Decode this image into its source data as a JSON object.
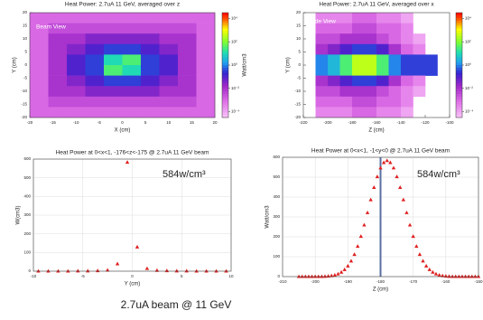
{
  "caption": "2.7uA beam @ 11 GeV",
  "chart_data": [
    {
      "type": "heatmap",
      "title": "Heat Power: 2.7uA 11 GeV, averaged over z",
      "annotation": "Beam View",
      "x_label": "X (cm)",
      "y_label": "Y (cm)",
      "colorbar_label": "Watt/cm3",
      "xlim": [
        -20,
        20
      ],
      "ylim": [
        -20,
        20
      ],
      "xticks": [
        -20,
        -15,
        -10,
        -5,
        0,
        5,
        10,
        15,
        20
      ],
      "yticks": [
        -20,
        -15,
        -10,
        -5,
        0,
        5,
        10,
        15,
        20
      ],
      "clim": [
        -4.5,
        4.5
      ],
      "cticks": [
        {
          "value": 4,
          "label": "10⁴"
        },
        {
          "value": 2,
          "label": "10²"
        },
        {
          "value": 0,
          "label": "10⁰"
        },
        {
          "value": -2,
          "label": "10⁻²"
        },
        {
          "value": -4,
          "label": "10⁻⁴"
        }
      ],
      "z": [
        [
          -3,
          -3,
          -3,
          -3,
          -3,
          -3,
          -3,
          -3,
          -3,
          -3
        ],
        [
          -3,
          -2.5,
          -2.5,
          -2.5,
          -2.5,
          -2.5,
          -2.5,
          -2.5,
          -2.5,
          -3
        ],
        [
          -3,
          -2,
          -2,
          -1.5,
          -1.5,
          -1.5,
          -1.5,
          -2,
          -2,
          -3
        ],
        [
          -3,
          -2,
          -1.5,
          -1,
          -0.5,
          -0.5,
          -1,
          -1.5,
          -2,
          -3
        ],
        [
          -3,
          -2,
          -1,
          -0.5,
          1,
          1.5,
          -0.5,
          -1,
          -2,
          -3
        ],
        [
          -3,
          -2,
          -1,
          -0.5,
          1.5,
          1,
          -0.5,
          -1,
          -2,
          -3
        ],
        [
          -3,
          -2,
          -1.5,
          -1,
          -0.5,
          -0.5,
          -1,
          -1.5,
          -2,
          -3
        ],
        [
          -3,
          -2,
          -2,
          -1.5,
          -1.5,
          -1.5,
          -1.5,
          -2,
          -2,
          -3
        ],
        [
          -3,
          -2.5,
          -2.5,
          -2.5,
          -2.5,
          -2.5,
          -2.5,
          -2.5,
          -2.5,
          -3
        ],
        [
          -3,
          -3,
          -3,
          -3,
          -3,
          -3,
          -3,
          -3,
          -3,
          -3
        ]
      ]
    },
    {
      "type": "heatmap",
      "title": "Heat Power: 2.7uA 11 GeV, averaged over x",
      "annotation": "Side View",
      "x_label": "Z (cm)",
      "y_label": "Y (cm)",
      "xlim": [
        -220,
        -100
      ],
      "ylim": [
        -20,
        20
      ],
      "xticks": [
        -220,
        -200,
        -180,
        -160,
        -140,
        -120,
        -100
      ],
      "yticks": [
        -20,
        -15,
        -10,
        -5,
        0,
        5,
        10,
        15,
        20
      ],
      "clim": [
        -4.5,
        4.5
      ],
      "cticks": [
        {
          "value": 4,
          "label": "10⁴"
        },
        {
          "value": 2,
          "label": "10²"
        },
        {
          "value": 0,
          "label": "10⁰"
        },
        {
          "value": -2,
          "label": "10⁻²"
        },
        {
          "value": -4,
          "label": "10⁻⁴"
        }
      ],
      "z": [
        [
          null,
          -3.5,
          -3.5,
          -3.5,
          -3,
          -3,
          -3.5,
          -3.5,
          -4,
          null,
          null,
          null
        ],
        [
          null,
          -3,
          -3,
          -3,
          -2.5,
          -2.5,
          -3,
          -3,
          -3.5,
          null,
          null,
          null
        ],
        [
          null,
          -2.5,
          -2.5,
          -2,
          -2,
          -2,
          -2.5,
          -3,
          -3.5,
          -4,
          null,
          null
        ],
        [
          null,
          -2,
          -1.5,
          -1,
          -0.5,
          -0.5,
          -1,
          -2,
          -3,
          -3.5,
          null,
          null
        ],
        [
          null,
          0,
          0.5,
          1.5,
          2.5,
          2.5,
          1.5,
          0,
          -0.5,
          -0.5,
          -0.5,
          null
        ],
        [
          null,
          0,
          0.5,
          1.5,
          2.5,
          2.5,
          1.5,
          0,
          -0.5,
          -0.5,
          -0.5,
          null
        ],
        [
          null,
          -2,
          -1.5,
          -1,
          -0.5,
          -0.5,
          -1,
          -2,
          -3,
          -3.5,
          null,
          null
        ],
        [
          null,
          -2.5,
          -2.5,
          -2,
          -2,
          -2,
          -2.5,
          -3,
          -3.5,
          -4,
          null,
          null
        ],
        [
          null,
          -3,
          -3,
          -3,
          -2.5,
          -2.5,
          -3,
          -3,
          -3.5,
          null,
          null,
          null
        ],
        [
          null,
          -3.5,
          -3.5,
          -3.5,
          -3,
          -3,
          -3.5,
          -3.5,
          -4,
          null,
          null,
          null
        ]
      ]
    },
    {
      "type": "scatter",
      "title": "Heat Power at 0<x<1, -176<z<-175 @ 2.7uA 11 GeV beam",
      "annotation": "584w/cm³",
      "x_label": "Y (cm)",
      "y_label": "W(cm3)",
      "color": "#e02020",
      "grid": true,
      "xlim": [
        -10,
        10
      ],
      "ylim": [
        0,
        600
      ],
      "xticks": [
        -10,
        -5,
        0,
        5,
        10
      ],
      "yticks": [
        0,
        100,
        200,
        300,
        400,
        500,
        600
      ],
      "x": [
        -9.5,
        -8.5,
        -7.5,
        -6.5,
        -5.5,
        -4.5,
        -3.5,
        -2.5,
        -1.5,
        -0.5,
        0.5,
        1.5,
        2.5,
        3.5,
        4.5,
        5.5,
        6.5,
        7.5,
        8.5,
        9.5
      ],
      "values": [
        1,
        1,
        1,
        1,
        2,
        2,
        3,
        6,
        40,
        584,
        130,
        15,
        5,
        3,
        2,
        2,
        1,
        1,
        1,
        1
      ]
    },
    {
      "type": "scatter",
      "title": "Heat Power at 0<x<1, -1<y<0 @ 2.7uA 11 GeV beam",
      "annotation": "584w/cm³",
      "x_label": "Z (cm)",
      "y_label": "Watt/cm3",
      "color": "#e02020",
      "grid": true,
      "vline": -180,
      "vline_color": "#5a6fa0",
      "xlim": [
        -210,
        -150
      ],
      "ylim": [
        0,
        600
      ],
      "xticks": [
        -210,
        -200,
        -190,
        -180,
        -170,
        -160,
        -150
      ],
      "yticks": [
        0,
        100,
        200,
        300,
        400,
        500,
        600
      ],
      "x": [
        -205,
        -204,
        -203,
        -202,
        -201,
        -200,
        -199,
        -198,
        -197,
        -196,
        -195,
        -194,
        -193,
        -192,
        -191,
        -190,
        -189,
        -188,
        -187,
        -186,
        -185,
        -184,
        -183,
        -182,
        -181,
        -180,
        -179,
        -178,
        -177,
        -176,
        -175,
        -174,
        -173,
        -172,
        -171,
        -170,
        -169,
        -168,
        -167,
        -166,
        -165,
        -164,
        -163,
        -162,
        -161,
        -160,
        -159,
        -158,
        -157,
        -156,
        -155,
        -154,
        -153,
        -152,
        -151,
        -150
      ],
      "values": [
        1,
        1,
        1,
        1,
        1,
        1,
        1,
        1,
        2,
        3,
        5,
        8,
        14,
        23,
        36,
        54,
        79,
        112,
        153,
        203,
        260,
        322,
        387,
        449,
        503,
        547,
        574,
        584,
        574,
        547,
        503,
        449,
        387,
        322,
        260,
        203,
        153,
        112,
        79,
        54,
        36,
        23,
        14,
        8,
        5,
        3,
        2,
        1,
        1,
        1,
        1,
        1,
        1,
        1,
        1,
        1
      ]
    }
  ]
}
